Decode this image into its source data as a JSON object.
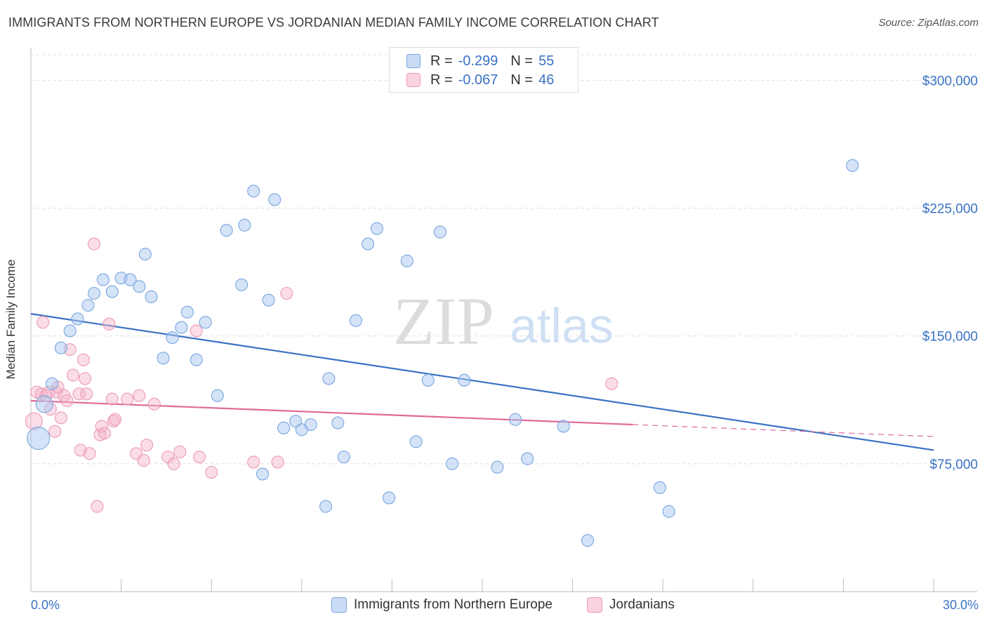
{
  "title": "IMMIGRANTS FROM NORTHERN EUROPE VS JORDANIAN MEDIAN FAMILY INCOME CORRELATION CHART",
  "source": "Source: ZipAtlas.com",
  "watermark": {
    "zip": "ZIP",
    "atlas": "atlas"
  },
  "legend": {
    "rows": [
      {
        "r_label": "R =",
        "r_value": "-0.299",
        "n_label": "N =",
        "n_value": "55",
        "color": "#a9c7ef"
      },
      {
        "r_label": "R =",
        "r_value": "-0.067",
        "n_label": "N =",
        "n_value": "46",
        "color": "#f4b4c9"
      }
    ]
  },
  "bottom_legend": {
    "series1": "Immigrants from Northern Europe",
    "series2": "Jordanians"
  },
  "chart_data": {
    "type": "scatter",
    "title": "IMMIGRANTS FROM NORTHERN EUROPE VS JORDANIAN MEDIAN FAMILY INCOME CORRELATION CHART",
    "xlabel": "",
    "ylabel": "Median Family Income",
    "xlim": [
      0,
      30
    ],
    "ylim": [
      0,
      315000
    ],
    "x_tick_labels": [
      "0.0%",
      "30.0%"
    ],
    "y_ticks": [
      75000,
      150000,
      225000,
      300000
    ],
    "y_tick_labels": [
      "$75,000",
      "$150,000",
      "$225,000",
      "$300,000"
    ],
    "grid": true,
    "legend_position": "top-center",
    "colors": {
      "blue": "#3a72c4",
      "blue_fill": "#a9c7ef",
      "pink": "#e0699a",
      "pink_fill": "#f4b4c9"
    },
    "series": [
      {
        "name": "Immigrants from Northern Europe",
        "color": "#3a72c4",
        "trend": {
          "x": [
            0,
            30
          ],
          "y": [
            163000,
            83000
          ]
        },
        "points": [
          [
            0.25,
            90000
          ],
          [
            0.45,
            110000
          ],
          [
            0.7,
            122000
          ],
          [
            1.0,
            143000
          ],
          [
            1.3,
            153000
          ],
          [
            1.55,
            160000
          ],
          [
            1.9,
            168000
          ],
          [
            2.1,
            175000
          ],
          [
            2.4,
            183000
          ],
          [
            2.7,
            176000
          ],
          [
            3.0,
            184000
          ],
          [
            3.3,
            183000
          ],
          [
            3.6,
            179000
          ],
          [
            3.8,
            198000
          ],
          [
            4.0,
            173000
          ],
          [
            4.4,
            137000
          ],
          [
            4.7,
            149000
          ],
          [
            5.0,
            155000
          ],
          [
            5.2,
            164000
          ],
          [
            5.5,
            136000
          ],
          [
            5.8,
            158000
          ],
          [
            6.2,
            115000
          ],
          [
            6.5,
            212000
          ],
          [
            7.0,
            180000
          ],
          [
            7.1,
            215000
          ],
          [
            7.4,
            235000
          ],
          [
            7.7,
            69000
          ],
          [
            7.9,
            171000
          ],
          [
            8.1,
            230000
          ],
          [
            8.4,
            96000
          ],
          [
            8.8,
            100000
          ],
          [
            9.0,
            95000
          ],
          [
            9.3,
            98000
          ],
          [
            9.8,
            50000
          ],
          [
            9.9,
            125000
          ],
          [
            10.2,
            99000
          ],
          [
            10.4,
            79000
          ],
          [
            10.8,
            159000
          ],
          [
            11.2,
            204000
          ],
          [
            11.5,
            213000
          ],
          [
            11.9,
            55000
          ],
          [
            12.5,
            194000
          ],
          [
            12.8,
            88000
          ],
          [
            13.2,
            124000
          ],
          [
            13.6,
            211000
          ],
          [
            14.0,
            75000
          ],
          [
            14.4,
            124000
          ],
          [
            15.5,
            73000
          ],
          [
            16.1,
            101000
          ],
          [
            16.5,
            78000
          ],
          [
            17.7,
            97000
          ],
          [
            18.5,
            30000
          ],
          [
            20.9,
            61000
          ],
          [
            21.2,
            47000
          ],
          [
            27.3,
            250000
          ]
        ]
      },
      {
        "name": "Jordanians",
        "color": "#e0699a",
        "trend": {
          "x": [
            0,
            20
          ],
          "y": [
            112000,
            98000
          ]
        },
        "trend_dashed": {
          "x": [
            20,
            30
          ],
          "y": [
            98000,
            91000
          ]
        },
        "points": [
          [
            0.1,
            100000
          ],
          [
            0.2,
            117000
          ],
          [
            0.35,
            116000
          ],
          [
            0.5,
            115000
          ],
          [
            0.6,
            117000
          ],
          [
            0.65,
            107000
          ],
          [
            0.8,
            94000
          ],
          [
            0.85,
            117000
          ],
          [
            0.9,
            120000
          ],
          [
            1.0,
            102000
          ],
          [
            1.1,
            115000
          ],
          [
            1.2,
            112000
          ],
          [
            1.3,
            142000
          ],
          [
            1.4,
            127000
          ],
          [
            1.6,
            116000
          ],
          [
            1.65,
            83000
          ],
          [
            1.75,
            136000
          ],
          [
            1.8,
            125000
          ],
          [
            1.85,
            116000
          ],
          [
            1.95,
            81000
          ],
          [
            2.1,
            204000
          ],
          [
            2.2,
            50000
          ],
          [
            2.3,
            92000
          ],
          [
            2.35,
            97000
          ],
          [
            2.45,
            93000
          ],
          [
            2.6,
            157000
          ],
          [
            2.7,
            113000
          ],
          [
            2.75,
            100000
          ],
          [
            2.8,
            101000
          ],
          [
            3.2,
            113000
          ],
          [
            3.5,
            81000
          ],
          [
            3.6,
            115000
          ],
          [
            3.75,
            77000
          ],
          [
            3.85,
            86000
          ],
          [
            4.1,
            110000
          ],
          [
            4.55,
            79000
          ],
          [
            4.75,
            75000
          ],
          [
            4.95,
            82000
          ],
          [
            5.5,
            153000
          ],
          [
            5.6,
            79000
          ],
          [
            6.0,
            70000
          ],
          [
            7.4,
            76000
          ],
          [
            8.2,
            76000
          ],
          [
            8.5,
            175000
          ],
          [
            19.3,
            122000
          ],
          [
            0.4,
            158000
          ]
        ]
      }
    ]
  }
}
